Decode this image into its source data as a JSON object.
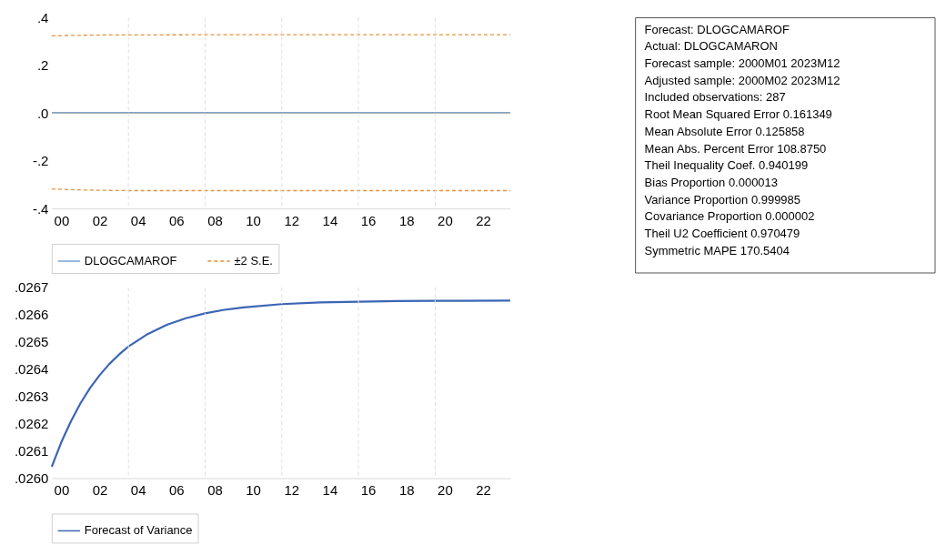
{
  "chart_data": [
    {
      "type": "line",
      "xlim": [
        "2000-01",
        "2023-12"
      ],
      "ylim": [
        -0.4,
        0.4
      ],
      "xticks": [
        {
          "value": "2000-07",
          "label": "00"
        },
        {
          "value": "2002-07",
          "label": "02"
        },
        {
          "value": "2004-07",
          "label": "04"
        },
        {
          "value": "2006-07",
          "label": "06"
        },
        {
          "value": "2008-07",
          "label": "08"
        },
        {
          "value": "2010-07",
          "label": "10"
        },
        {
          "value": "2012-07",
          "label": "12"
        },
        {
          "value": "2014-07",
          "label": "14"
        },
        {
          "value": "2016-07",
          "label": "16"
        },
        {
          "value": "2018-07",
          "label": "18"
        },
        {
          "value": "2020-07",
          "label": "20"
        },
        {
          "value": "2022-07",
          "label": "22"
        }
      ],
      "yticks": [
        {
          "value": 0.4,
          "label": ".4"
        },
        {
          "value": 0.2,
          "label": ".2"
        },
        {
          "value": 0,
          "label": ".0"
        },
        {
          "value": -0.2,
          "label": "-.2"
        },
        {
          "value": -0.4,
          "label": "-.4"
        }
      ],
      "x": [
        "2000-01",
        "2001-01",
        "2002-01",
        "2003-01",
        "2004-01",
        "2008-01",
        "2012-01",
        "2023-12"
      ],
      "series": [
        {
          "name": "DLOGCAMAROF",
          "color": "#7ba3d6",
          "line_style": "solid",
          "values": [
            0.003,
            0.003,
            0.003,
            0.003,
            0.003,
            0.003,
            0.003,
            0.003
          ]
        },
        {
          "name": "±2 S.E.",
          "color": "#e8913a",
          "line_style": "dashed",
          "values": [
            0.324,
            0.326,
            0.327,
            0.328,
            0.328,
            0.329,
            0.329,
            0.329
          ]
        },
        {
          "color": "#e8913a",
          "line_style": "dashed",
          "values": [
            -0.318,
            -0.321,
            -0.323,
            -0.324,
            -0.325,
            -0.325,
            -0.325,
            -0.325
          ]
        }
      ],
      "ref_lines": [
        {
          "axis": "y",
          "value": 0,
          "color": "#a6a6a6",
          "line_style": "solid"
        },
        {
          "axis": "x",
          "value": "2004-01",
          "color": "#e0e0e0",
          "line_style": "dashed"
        },
        {
          "axis": "x",
          "value": "2008-01",
          "color": "#e0e0e0",
          "line_style": "dashed"
        },
        {
          "axis": "x",
          "value": "2012-01",
          "color": "#e0e0e0",
          "line_style": "dashed"
        },
        {
          "axis": "x",
          "value": "2016-01",
          "color": "#e0e0e0",
          "line_style": "dashed"
        },
        {
          "axis": "x",
          "value": "2020-01",
          "color": "#e0e0e0",
          "line_style": "dashed"
        }
      ],
      "legend": "bottom"
    },
    {
      "type": "line",
      "xlim": [
        "2000-01",
        "2023-12"
      ],
      "ylim": [
        0.026,
        0.0267
      ],
      "xticks": [
        {
          "value": "2000-07",
          "label": "00"
        },
        {
          "value": "2002-07",
          "label": "02"
        },
        {
          "value": "2004-07",
          "label": "04"
        },
        {
          "value": "2006-07",
          "label": "06"
        },
        {
          "value": "2008-07",
          "label": "08"
        },
        {
          "value": "2010-07",
          "label": "10"
        },
        {
          "value": "2012-07",
          "label": "12"
        },
        {
          "value": "2014-07",
          "label": "14"
        },
        {
          "value": "2016-07",
          "label": "16"
        },
        {
          "value": "2018-07",
          "label": "18"
        },
        {
          "value": "2020-07",
          "label": "20"
        },
        {
          "value": "2022-07",
          "label": "22"
        }
      ],
      "yticks": [
        {
          "value": 0.0267,
          "label": ".0267"
        },
        {
          "value": 0.0266,
          "label": ".0266"
        },
        {
          "value": 0.0265,
          "label": ".0265"
        },
        {
          "value": 0.0264,
          "label": ".0264"
        },
        {
          "value": 0.0263,
          "label": ".0263"
        },
        {
          "value": 0.0262,
          "label": ".0262"
        },
        {
          "value": 0.0261,
          "label": ".0261"
        },
        {
          "value": 0.026,
          "label": ".0260"
        }
      ],
      "x": [
        "2000-01",
        "2000-07",
        "2001-01",
        "2001-07",
        "2002-01",
        "2002-07",
        "2003-01",
        "2003-07",
        "2004-01",
        "2005-01",
        "2006-01",
        "2007-01",
        "2008-01",
        "2009-01",
        "2010-01",
        "2012-01",
        "2014-01",
        "2016-01",
        "2018-01",
        "2020-01",
        "2023-12"
      ],
      "series": [
        {
          "name": "Forecast of Variance",
          "color": "#3b65b5",
          "line_style": "solid",
          "values": [
            0.026042,
            0.026132,
            0.026209,
            0.026275,
            0.026331,
            0.026378,
            0.026419,
            0.026453,
            0.026483,
            0.026529,
            0.026563,
            0.026587,
            0.026605,
            0.026618,
            0.026627,
            0.026639,
            0.026645,
            0.026648,
            0.02665,
            0.026651,
            0.026652
          ]
        }
      ],
      "ref_lines": [
        {
          "axis": "x",
          "value": "2004-01",
          "color": "#e0e0e0",
          "line_style": "dashed"
        },
        {
          "axis": "x",
          "value": "2008-01",
          "color": "#e0e0e0",
          "line_style": "dashed"
        },
        {
          "axis": "x",
          "value": "2012-01",
          "color": "#e0e0e0",
          "line_style": "dashed"
        },
        {
          "axis": "x",
          "value": "2016-01",
          "color": "#e0e0e0",
          "line_style": "dashed"
        },
        {
          "axis": "x",
          "value": "2020-01",
          "color": "#e0e0e0",
          "line_style": "dashed"
        }
      ],
      "legend": "bottom"
    },
    {
      "type": "other",
      "annotations": [
        "Forecast: DLOGCAMAROF",
        "Actual: DLOGCAMARON",
        "Forecast sample: 2000M01 2023M12",
        "Adjusted sample: 2000M02 2023M12",
        "Included observations: 287",
        "Root Mean Squared Error 0.161349",
        "Mean Absolute Error 0.125858",
        "Mean Abs. Percent Error 108.8750",
        "Theil Inequality Coef. 0.940199",
        "Bias Proportion 0.000013",
        "Variance Proportion 0.999985",
        "Covariance Proportion 0.000002",
        "Theil U2 Coefficient 0.970479",
        "Symmetric MAPE 170.5404"
      ]
    }
  ]
}
